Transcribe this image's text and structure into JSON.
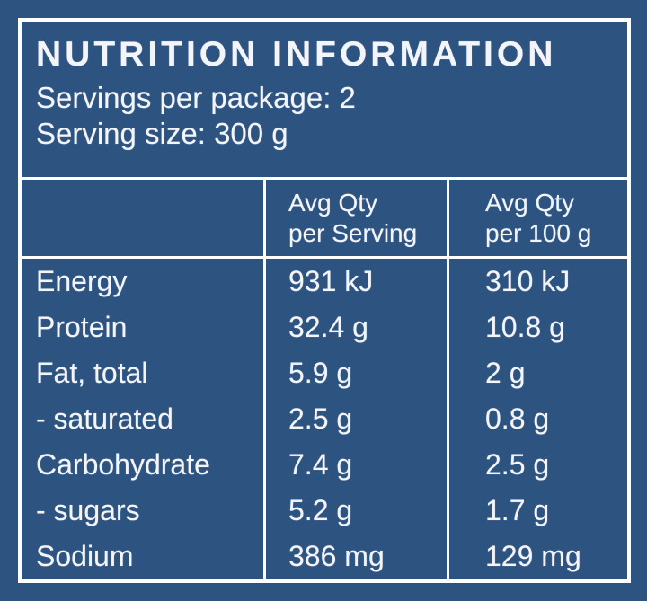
{
  "panel": {
    "title": "NUTRITION INFORMATION",
    "servings_per_package": "Servings per package: 2",
    "serving_size": "Serving size: 300 g"
  },
  "table": {
    "col_blank": "",
    "col_per_serving": {
      "line1": "Avg Qty",
      "line2": "per Serving"
    },
    "col_per_100g": {
      "line1": "Avg Qty",
      "line2": "per 100 g"
    },
    "rows": [
      {
        "label": "Energy",
        "per_serving": "931 kJ",
        "per_100g": "310 kJ"
      },
      {
        "label": "Protein",
        "per_serving": "32.4 g",
        "per_100g": "10.8 g"
      },
      {
        "label": "Fat, total",
        "per_serving": "5.9 g",
        "per_100g": "2 g"
      },
      {
        "label": "- saturated",
        "per_serving": "2.5 g",
        "per_100g": "0.8 g"
      },
      {
        "label": "Carbohydrate",
        "per_serving": "7.4 g",
        "per_100g": "2.5 g"
      },
      {
        "label": "- sugars",
        "per_serving": "5.2 g",
        "per_100g": "1.7 g"
      },
      {
        "label": "Sodium",
        "per_serving": "386 mg",
        "per_100g": "129 mg"
      }
    ]
  },
  "colors": {
    "background": "#2d5381",
    "frame_line": "#ffffff",
    "text": "#f3f5fa"
  }
}
